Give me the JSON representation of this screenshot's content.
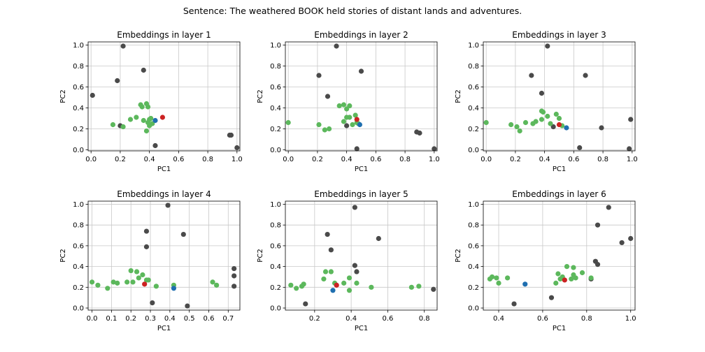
{
  "suptitle": "Sentence: The weathered BOOK held stories of distant lands and adventures.",
  "colors": {
    "context": "#4a4a4a",
    "other": "#5cb85c",
    "book": "#cc2222",
    "anchor": "#1f6fb0",
    "grid": "#c8c8c8"
  },
  "chart_data": [
    {
      "type": "scatter",
      "title": "Embeddings in layer 1",
      "xlabel": "PC1",
      "ylabel": "PC2",
      "xlim": [
        -0.02,
        1.02
      ],
      "ylim": [
        -0.01,
        1.03
      ],
      "xticks": [
        0.0,
        0.2,
        0.4,
        0.6,
        0.8,
        1.0
      ],
      "yticks": [
        0.0,
        0.2,
        0.4,
        0.6,
        0.8,
        1.0
      ],
      "grid": true,
      "series": [
        {
          "role": "context",
          "points": [
            [
              0.22,
              0.99
            ],
            [
              0.18,
              0.66
            ],
            [
              0.36,
              0.76
            ],
            [
              0.01,
              0.52
            ],
            [
              0.2,
              0.23
            ],
            [
              0.44,
              0.04
            ],
            [
              0.95,
              0.14
            ],
            [
              0.96,
              0.14
            ],
            [
              1.0,
              0.02
            ]
          ]
        },
        {
          "role": "other",
          "points": [
            [
              0.15,
              0.24
            ],
            [
              0.22,
              0.22
            ],
            [
              0.27,
              0.29
            ],
            [
              0.31,
              0.31
            ],
            [
              0.34,
              0.43
            ],
            [
              0.35,
              0.41
            ],
            [
              0.38,
              0.44
            ],
            [
              0.39,
              0.41
            ],
            [
              0.36,
              0.28
            ],
            [
              0.39,
              0.26
            ],
            [
              0.4,
              0.23
            ],
            [
              0.41,
              0.3
            ],
            [
              0.42,
              0.25
            ],
            [
              0.38,
              0.18
            ],
            [
              0.4,
              0.29
            ]
          ]
        },
        {
          "role": "book",
          "points": [
            [
              0.49,
              0.31
            ]
          ]
        },
        {
          "role": "anchor",
          "points": [
            [
              0.44,
              0.28
            ]
          ]
        }
      ]
    },
    {
      "type": "scatter",
      "title": "Embeddings in layer 2",
      "xlabel": "PC1",
      "ylabel": "PC2",
      "xlim": [
        -0.02,
        1.02
      ],
      "ylim": [
        -0.01,
        1.03
      ],
      "xticks": [
        0.0,
        0.2,
        0.4,
        0.6,
        0.8,
        1.0
      ],
      "yticks": [
        0.0,
        0.2,
        0.4,
        0.6,
        0.8,
        1.0
      ],
      "grid": true,
      "series": [
        {
          "role": "context",
          "points": [
            [
              0.33,
              0.99
            ],
            [
              0.21,
              0.71
            ],
            [
              0.27,
              0.51
            ],
            [
              0.5,
              0.75
            ],
            [
              0.4,
              0.23
            ],
            [
              0.47,
              0.01
            ],
            [
              0.88,
              0.17
            ],
            [
              0.9,
              0.16
            ],
            [
              1.0,
              0.01
            ]
          ]
        },
        {
          "role": "other",
          "points": [
            [
              0.0,
              0.26
            ],
            [
              0.21,
              0.24
            ],
            [
              0.25,
              0.19
            ],
            [
              0.28,
              0.2
            ],
            [
              0.35,
              0.42
            ],
            [
              0.38,
              0.43
            ],
            [
              0.4,
              0.39
            ],
            [
              0.42,
              0.42
            ],
            [
              0.38,
              0.27
            ],
            [
              0.4,
              0.31
            ],
            [
              0.42,
              0.31
            ],
            [
              0.46,
              0.33
            ],
            [
              0.47,
              0.26
            ],
            [
              0.44,
              0.24
            ],
            [
              0.48,
              0.25
            ]
          ]
        },
        {
          "role": "book",
          "points": [
            [
              0.47,
              0.29
            ]
          ]
        },
        {
          "role": "anchor",
          "points": [
            [
              0.49,
              0.24
            ]
          ]
        }
      ]
    },
    {
      "type": "scatter",
      "title": "Embeddings in layer 3",
      "xlabel": "PC1",
      "ylabel": "PC2",
      "xlim": [
        -0.02,
        1.02
      ],
      "ylim": [
        -0.01,
        1.03
      ],
      "xticks": [
        0.0,
        0.2,
        0.4,
        0.6,
        0.8,
        1.0
      ],
      "yticks": [
        0.0,
        0.2,
        0.4,
        0.6,
        0.8,
        1.0
      ],
      "grid": true,
      "series": [
        {
          "role": "context",
          "points": [
            [
              0.42,
              0.99
            ],
            [
              0.31,
              0.71
            ],
            [
              0.68,
              0.71
            ],
            [
              0.38,
              0.54
            ],
            [
              0.46,
              0.22
            ],
            [
              0.64,
              0.02
            ],
            [
              0.79,
              0.21
            ],
            [
              0.98,
              0.01
            ],
            [
              0.99,
              0.29
            ]
          ]
        },
        {
          "role": "other",
          "points": [
            [
              0.0,
              0.26
            ],
            [
              0.17,
              0.24
            ],
            [
              0.21,
              0.22
            ],
            [
              0.23,
              0.18
            ],
            [
              0.27,
              0.26
            ],
            [
              0.32,
              0.25
            ],
            [
              0.34,
              0.27
            ],
            [
              0.38,
              0.37
            ],
            [
              0.39,
              0.36
            ],
            [
              0.38,
              0.29
            ],
            [
              0.42,
              0.32
            ],
            [
              0.44,
              0.25
            ],
            [
              0.48,
              0.34
            ],
            [
              0.5,
              0.3
            ],
            [
              0.52,
              0.23
            ]
          ]
        },
        {
          "role": "book",
          "points": [
            [
              0.5,
              0.24
            ]
          ]
        },
        {
          "role": "anchor",
          "points": [
            [
              0.55,
              0.21
            ]
          ]
        }
      ]
    },
    {
      "type": "scatter",
      "title": "Embeddings in layer 4",
      "xlabel": "PC1",
      "ylabel": "PC2",
      "xlim": [
        -0.02,
        0.76
      ],
      "ylim": [
        -0.02,
        1.03
      ],
      "xticks": [
        0.0,
        0.1,
        0.2,
        0.3,
        0.4,
        0.5,
        0.6,
        0.7
      ],
      "yticks": [
        0.0,
        0.2,
        0.4,
        0.6,
        0.8,
        1.0
      ],
      "grid": true,
      "series": [
        {
          "role": "context",
          "points": [
            [
              0.39,
              0.99
            ],
            [
              0.28,
              0.74
            ],
            [
              0.47,
              0.71
            ],
            [
              0.28,
              0.59
            ],
            [
              0.31,
              0.05
            ],
            [
              0.49,
              0.02
            ],
            [
              0.73,
              0.38
            ],
            [
              0.73,
              0.31
            ],
            [
              0.73,
              0.21
            ]
          ]
        },
        {
          "role": "other",
          "points": [
            [
              0.0,
              0.25
            ],
            [
              0.03,
              0.22
            ],
            [
              0.08,
              0.19
            ],
            [
              0.11,
              0.25
            ],
            [
              0.13,
              0.24
            ],
            [
              0.18,
              0.25
            ],
            [
              0.2,
              0.36
            ],
            [
              0.23,
              0.35
            ],
            [
              0.21,
              0.25
            ],
            [
              0.24,
              0.29
            ],
            [
              0.26,
              0.32
            ],
            [
              0.28,
              0.27
            ],
            [
              0.29,
              0.27
            ],
            [
              0.33,
              0.21
            ],
            [
              0.42,
              0.22
            ],
            [
              0.62,
              0.25
            ],
            [
              0.64,
              0.22
            ]
          ]
        },
        {
          "role": "book",
          "points": [
            [
              0.27,
              0.23
            ]
          ]
        },
        {
          "role": "anchor",
          "points": [
            [
              0.42,
              0.19
            ]
          ]
        }
      ]
    },
    {
      "type": "scatter",
      "title": "Embeddings in layer 5",
      "xlabel": "PC1",
      "ylabel": "PC2",
      "xlim": [
        0.04,
        0.87
      ],
      "ylim": [
        -0.02,
        1.03
      ],
      "xticks": [
        0.2,
        0.4,
        0.6,
        0.8
      ],
      "yticks": [
        0.0,
        0.2,
        0.4,
        0.6,
        0.8,
        1.0
      ],
      "grid": true,
      "series": [
        {
          "role": "context",
          "points": [
            [
              0.42,
              0.97
            ],
            [
              0.27,
              0.71
            ],
            [
              0.55,
              0.67
            ],
            [
              0.29,
              0.56
            ],
            [
              0.42,
              0.41
            ],
            [
              0.43,
              0.35
            ],
            [
              0.15,
              0.04
            ],
            [
              0.85,
              0.18
            ]
          ]
        },
        {
          "role": "other",
          "points": [
            [
              0.07,
              0.22
            ],
            [
              0.1,
              0.19
            ],
            [
              0.13,
              0.21
            ],
            [
              0.14,
              0.23
            ],
            [
              0.25,
              0.28
            ],
            [
              0.26,
              0.35
            ],
            [
              0.29,
              0.35
            ],
            [
              0.31,
              0.24
            ],
            [
              0.36,
              0.24
            ],
            [
              0.39,
              0.29
            ],
            [
              0.39,
              0.17
            ],
            [
              0.43,
              0.24
            ],
            [
              0.51,
              0.2
            ],
            [
              0.73,
              0.2
            ],
            [
              0.77,
              0.21
            ]
          ]
        },
        {
          "role": "book",
          "points": [
            [
              0.32,
              0.22
            ]
          ]
        },
        {
          "role": "anchor",
          "points": [
            [
              0.3,
              0.17
            ]
          ]
        }
      ]
    },
    {
      "type": "scatter",
      "title": "Embeddings in layer 6",
      "xlabel": "PC1",
      "ylabel": "PC2",
      "xlim": [
        0.33,
        1.02
      ],
      "ylim": [
        -0.02,
        1.03
      ],
      "xticks": [
        0.4,
        0.6,
        0.8,
        1.0
      ],
      "yticks": [
        0.0,
        0.2,
        0.4,
        0.6,
        0.8,
        1.0
      ],
      "grid": true,
      "series": [
        {
          "role": "context",
          "points": [
            [
              0.9,
              0.97
            ],
            [
              0.85,
              0.8
            ],
            [
              0.96,
              0.63
            ],
            [
              1.0,
              0.67
            ],
            [
              0.84,
              0.45
            ],
            [
              0.85,
              0.42
            ],
            [
              0.82,
              0.28
            ],
            [
              0.64,
              0.1
            ],
            [
              0.47,
              0.04
            ]
          ]
        },
        {
          "role": "other",
          "points": [
            [
              0.36,
              0.28
            ],
            [
              0.37,
              0.3
            ],
            [
              0.39,
              0.29
            ],
            [
              0.4,
              0.24
            ],
            [
              0.44,
              0.29
            ],
            [
              0.66,
              0.24
            ],
            [
              0.67,
              0.33
            ],
            [
              0.68,
              0.28
            ],
            [
              0.69,
              0.3
            ],
            [
              0.71,
              0.4
            ],
            [
              0.73,
              0.28
            ],
            [
              0.74,
              0.32
            ],
            [
              0.74,
              0.39
            ],
            [
              0.75,
              0.29
            ],
            [
              0.78,
              0.34
            ],
            [
              0.82,
              0.29
            ]
          ]
        },
        {
          "role": "book",
          "points": [
            [
              0.7,
              0.27
            ]
          ]
        },
        {
          "role": "anchor",
          "points": [
            [
              0.52,
              0.23
            ]
          ]
        }
      ]
    }
  ]
}
